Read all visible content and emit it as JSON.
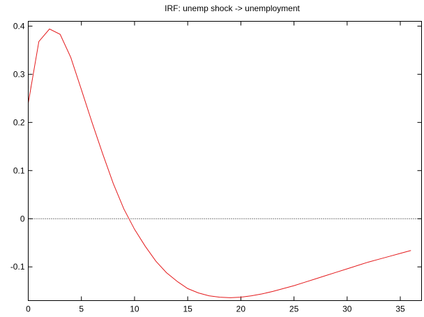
{
  "chart_data": {
    "type": "line",
    "title": "IRF: unemp shock -> unemployment",
    "xlabel": "",
    "ylabel": "",
    "xlim": [
      0,
      37
    ],
    "ylim": [
      -0.17,
      0.41
    ],
    "x_ticks": [
      0,
      5,
      10,
      15,
      20,
      25,
      30,
      35
    ],
    "x_tick_labels": [
      "0",
      "5",
      "10",
      "15",
      "20",
      "25",
      "30",
      "35"
    ],
    "y_ticks": [
      -0.1,
      0,
      0.1,
      0.2,
      0.3,
      0.4
    ],
    "y_tick_labels": [
      "-0.1",
      "0",
      "0.1",
      "0.2",
      "0.3",
      "0.4"
    ],
    "zero_line": true,
    "grid": false,
    "legend": "none",
    "series": [
      {
        "color": "#e41a1c",
        "x": [
          0,
          1,
          2,
          3,
          4,
          5,
          6,
          7,
          8,
          9,
          10,
          11,
          12,
          13,
          14,
          15,
          16,
          17,
          18,
          19,
          20,
          21,
          22,
          23,
          24,
          25,
          26,
          27,
          28,
          29,
          30,
          31,
          32,
          33,
          34,
          35,
          36
        ],
        "y": [
          0.24,
          0.368,
          0.394,
          0.383,
          0.335,
          0.268,
          0.2,
          0.135,
          0.073,
          0.02,
          -0.022,
          -0.057,
          -0.088,
          -0.112,
          -0.13,
          -0.145,
          -0.154,
          -0.16,
          -0.163,
          -0.164,
          -0.163,
          -0.16,
          -0.156,
          -0.151,
          -0.145,
          -0.139,
          -0.132,
          -0.125,
          -0.118,
          -0.111,
          -0.104,
          -0.097,
          -0.09,
          -0.084,
          -0.078,
          -0.072,
          -0.066
        ]
      }
    ]
  }
}
